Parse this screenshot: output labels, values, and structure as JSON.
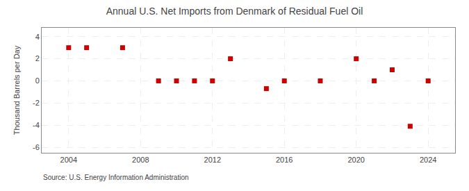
{
  "chart_data": {
    "type": "scatter",
    "title": "Annual U.S. Net Imports from Denmark of Residual Fuel Oil",
    "ylabel": "Thousand Barrels per Day",
    "annotations": [
      "Source: U.S. Energy Information Administration"
    ],
    "x": [
      2004,
      2005,
      2007,
      2009,
      2010,
      2011,
      2012,
      2013,
      2015,
      2016,
      2018,
      2020,
      2021,
      2022,
      2023,
      2024
    ],
    "values": [
      3.0,
      3.0,
      3.0,
      0.0,
      0.0,
      0.0,
      0.0,
      2.0,
      -0.7,
      0.0,
      0.0,
      2.0,
      0.0,
      1.0,
      -4.1,
      0.0
    ],
    "color": "#cc0000",
    "marker": "square",
    "xlim": [
      2002.5,
      2025.5
    ],
    "ylim": [
      -6.5,
      4.8
    ],
    "xticks": [
      2004,
      2008,
      2012,
      2016,
      2020,
      2024
    ],
    "yticks": [
      -6,
      -4,
      -2,
      0,
      2,
      4
    ],
    "grid": true
  }
}
